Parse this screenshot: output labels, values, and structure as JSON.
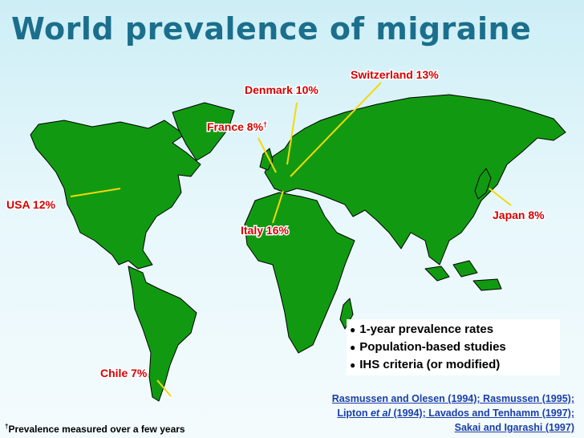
{
  "title": "World prevalence of migraine",
  "labels": [
    {
      "text": "USA 12%"
    },
    {
      "text": "Chile 7%"
    },
    {
      "text": "France 8%",
      "mark": "†"
    },
    {
      "text": "Denmark 10%"
    },
    {
      "text": "Switzerland 13%"
    },
    {
      "text": "Italy 16%"
    },
    {
      "text": "Japan 8%"
    }
  ],
  "bullets": [
    "1-year prevalence rates",
    "Population-based studies",
    "IHS criteria (or modified)"
  ],
  "references": {
    "line1": "Rasmussen and Olesen (1994); Rasmussen (1995);",
    "line2": {
      "before": "Lipton ",
      "italic": "et al",
      "after": " (1994); Lavados and Tenhamm (1997);"
    },
    "line3": "Sakai and Igarashi (1997)"
  },
  "footnote": {
    "mark": "†",
    "text": "Prevalence measured over a few years"
  }
}
